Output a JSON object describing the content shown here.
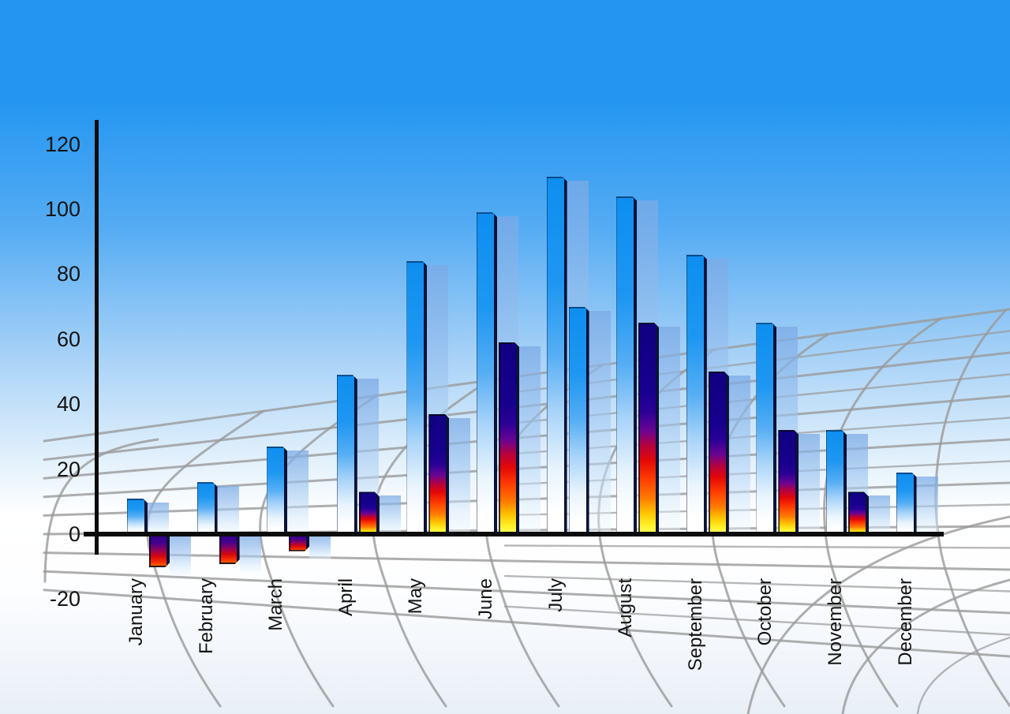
{
  "chart_data": {
    "type": "bar",
    "title": "",
    "xlabel": "",
    "ylabel": "",
    "categories": [
      "January",
      "February",
      "March",
      "April",
      "May",
      "June",
      "July",
      "August",
      "September",
      "October",
      "November",
      "December"
    ],
    "series": [
      {
        "name": "blue-gradient-series",
        "values": [
          11,
          16,
          27,
          49,
          84,
          99,
          110,
          104,
          86,
          65,
          32,
          19
        ],
        "bar_styles": [
          "blue",
          "blue",
          "blue",
          "blue",
          "blue",
          "blue",
          "blue",
          "blue",
          "blue",
          "blue",
          "blue",
          "blue"
        ]
      },
      {
        "name": "multicolor-gradient-series",
        "values": [
          -10,
          -9,
          -5,
          13,
          37,
          59,
          70,
          65,
          50,
          32,
          13,
          null
        ],
        "bar_styles": [
          "multi",
          "multi",
          "multi",
          "multi",
          "multi",
          "multi",
          "blue",
          "multi",
          "multi",
          "multi",
          "multi",
          null
        ]
      }
    ],
    "y_ticks": [
      120,
      100,
      80,
      60,
      40,
      20,
      0,
      -20
    ],
    "y_tick_labels": [
      "120",
      "100",
      "80",
      "60",
      "40",
      "20",
      "0",
      "-20"
    ],
    "ylim": [
      -20,
      120
    ],
    "legend": "none",
    "grid": "decorative gray perspective mesh on sky-blue gradient background",
    "notes": "3D-style bar chart; every bar has a translucent light-blue copy offset to the right; July's second bar is blue instead of multicolor; December has no second bar; January-March second bars are negative."
  },
  "colors": {
    "sky_top": "#2496F1",
    "sky_mid": "#A8D2F7",
    "sky_bottom": "#E9EFF7",
    "bar_blue": "#0D8EEF",
    "edge_navy": "#0A1238",
    "shadow_blue": "#9FC4EE",
    "multi_navy": "#100080",
    "multi_red": "#E30707",
    "multi_orange": "#FF7A00",
    "multi_yellow": "#FFF32A",
    "grid_gray": "#9A9A9A",
    "axis_black": "#0C0C0C",
    "text_black": "#141414"
  }
}
